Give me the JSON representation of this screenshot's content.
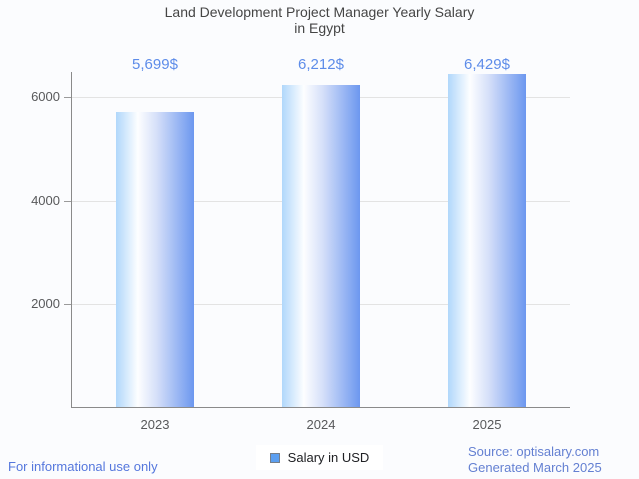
{
  "title": {
    "line1": "Land Development Project Manager Yearly Salary",
    "line2": "in Egypt"
  },
  "chart_data": {
    "type": "bar",
    "title": "Land Development Project Manager Yearly Salary in Egypt",
    "categories": [
      "2023",
      "2024",
      "2025"
    ],
    "values": [
      5699,
      6212,
      6429
    ],
    "value_labels": [
      "5,699$",
      "6,212$",
      "6,429$"
    ],
    "series_name": "Salary in USD",
    "xlabel": "",
    "ylabel": "",
    "y_ticks": [
      2000,
      4000,
      6000
    ],
    "ylim": [
      0,
      6480
    ],
    "grid": true,
    "legend_position": "bottom",
    "bar_gradient": [
      "#b0d7fb",
      "#ffffff",
      "#6c97ef"
    ],
    "value_label_color": "#5d8ce9"
  },
  "legend": {
    "label": "Salary in USD",
    "swatch_color": "#5c9ff0"
  },
  "footer": {
    "disclaimer": "For informational use only",
    "source": "Source: optisalary.com",
    "generated": "Generated March 2025"
  },
  "colors": {
    "background": "#fbfcfe",
    "title_text": "#454545",
    "axis_text": "#58595b",
    "axis_line": "#8a8a8a",
    "gridline": "#e3e3e3",
    "value_text": "#5d8ce9",
    "footer_text": "#5577dd"
  }
}
